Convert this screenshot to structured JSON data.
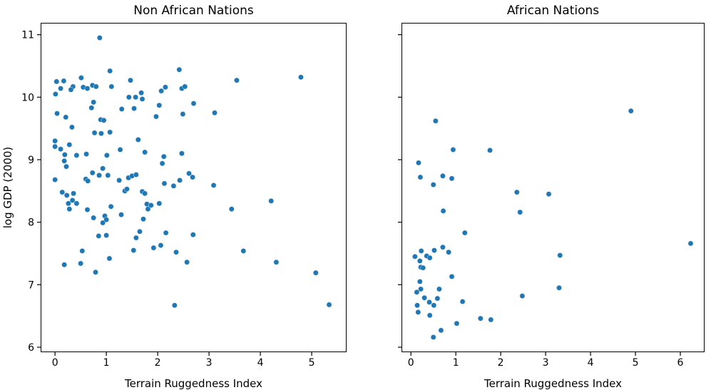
{
  "figure": {
    "background": "#ffffff",
    "marker_color": "#1f77b4",
    "marker_edge": "#d6e6f2",
    "spine_color": "#000000"
  },
  "chart_data": [
    {
      "type": "scatter",
      "title": "Non African Nations",
      "xlabel": "Terrain Ruggedness Index",
      "ylabel": "log GDP (2000)",
      "xlim": [
        -0.28,
        5.68
      ],
      "ylim": [
        5.92,
        11.19
      ],
      "xticks": [
        0,
        1,
        2,
        3,
        4,
        5
      ],
      "yticks": [
        6,
        7,
        8,
        9,
        10,
        11
      ],
      "show_ytick_labels": true,
      "grid": false,
      "legend": null,
      "points": [
        [
          0.87,
          10.95
        ],
        [
          1.07,
          10.42
        ],
        [
          2.42,
          10.44
        ],
        [
          3.54,
          10.27
        ],
        [
          4.79,
          10.32
        ],
        [
          0.51,
          10.31
        ],
        [
          0.03,
          10.25
        ],
        [
          0.17,
          10.26
        ],
        [
          1.47,
          10.27
        ],
        [
          0.35,
          10.17
        ],
        [
          0.11,
          10.14
        ],
        [
          0.31,
          10.12
        ],
        [
          0.55,
          10.16
        ],
        [
          0.63,
          10.14
        ],
        [
          0.73,
          10.19
        ],
        [
          0.8,
          10.17
        ],
        [
          1.1,
          10.17
        ],
        [
          2.07,
          10.1
        ],
        [
          2.15,
          10.16
        ],
        [
          2.47,
          10.14
        ],
        [
          2.53,
          10.17
        ],
        [
          0.01,
          10.05
        ],
        [
          1.68,
          10.07
        ],
        [
          1.44,
          10.0
        ],
        [
          1.57,
          10.0
        ],
        [
          1.7,
          9.97
        ],
        [
          2.7,
          9.9
        ],
        [
          0.75,
          9.92
        ],
        [
          0.71,
          9.83
        ],
        [
          1.3,
          9.81
        ],
        [
          1.54,
          9.82
        ],
        [
          2.03,
          9.87
        ],
        [
          0.04,
          9.74
        ],
        [
          2.49,
          9.73
        ],
        [
          3.11,
          9.75
        ],
        [
          0.21,
          9.68
        ],
        [
          1.97,
          9.69
        ],
        [
          0.89,
          9.64
        ],
        [
          0.95,
          9.63
        ],
        [
          0.33,
          9.52
        ],
        [
          0.77,
          9.43
        ],
        [
          0.9,
          9.42
        ],
        [
          1.07,
          9.44
        ],
        [
          0.0,
          9.3
        ],
        [
          1.62,
          9.32
        ],
        [
          0.0,
          9.21
        ],
        [
          0.11,
          9.17
        ],
        [
          0.28,
          9.24
        ],
        [
          0.42,
          9.07
        ],
        [
          0.61,
          9.09
        ],
        [
          1.01,
          9.07
        ],
        [
          1.75,
          9.12
        ],
        [
          2.47,
          9.1
        ],
        [
          1.27,
          9.16
        ],
        [
          2.12,
          9.05
        ],
        [
          0.19,
          9.08
        ],
        [
          0.18,
          8.98
        ],
        [
          2.09,
          8.94
        ],
        [
          0.22,
          8.89
        ],
        [
          0.93,
          8.86
        ],
        [
          0.73,
          8.79
        ],
        [
          0.86,
          8.75
        ],
        [
          1.03,
          8.75
        ],
        [
          1.43,
          8.71
        ],
        [
          1.5,
          8.74
        ],
        [
          1.58,
          8.76
        ],
        [
          0.0,
          8.68
        ],
        [
          0.6,
          8.69
        ],
        [
          0.64,
          8.66
        ],
        [
          1.25,
          8.67
        ],
        [
          2.13,
          8.62
        ],
        [
          2.43,
          8.67
        ],
        [
          2.61,
          8.78
        ],
        [
          2.68,
          8.72
        ],
        [
          2.31,
          8.58
        ],
        [
          1.36,
          8.5
        ],
        [
          1.4,
          8.53
        ],
        [
          0.14,
          8.48
        ],
        [
          0.23,
          8.43
        ],
        [
          0.36,
          8.46
        ],
        [
          1.7,
          8.49
        ],
        [
          1.75,
          8.46
        ],
        [
          3.09,
          8.59
        ],
        [
          0.34,
          8.35
        ],
        [
          0.42,
          8.3
        ],
        [
          0.26,
          8.3
        ],
        [
          0.28,
          8.21
        ],
        [
          0.63,
          8.2
        ],
        [
          1.09,
          8.25
        ],
        [
          1.79,
          8.29
        ],
        [
          1.87,
          8.27
        ],
        [
          1.81,
          8.21
        ],
        [
          2.03,
          8.3
        ],
        [
          4.21,
          8.34
        ],
        [
          3.44,
          8.21
        ],
        [
          1.29,
          8.12
        ],
        [
          0.75,
          8.07
        ],
        [
          0.97,
          8.1
        ],
        [
          1.0,
          8.04
        ],
        [
          0.93,
          7.99
        ],
        [
          1.72,
          8.05
        ],
        [
          1.65,
          7.85
        ],
        [
          0.85,
          7.78
        ],
        [
          1.0,
          7.79
        ],
        [
          2.16,
          7.83
        ],
        [
          2.69,
          7.8
        ],
        [
          1.58,
          7.75
        ],
        [
          1.92,
          7.59
        ],
        [
          2.06,
          7.63
        ],
        [
          1.53,
          7.55
        ],
        [
          0.53,
          7.54
        ],
        [
          2.36,
          7.52
        ],
        [
          3.67,
          7.54
        ],
        [
          1.06,
          7.42
        ],
        [
          0.5,
          7.34
        ],
        [
          2.57,
          7.36
        ],
        [
          0.18,
          7.32
        ],
        [
          0.79,
          7.2
        ],
        [
          4.31,
          7.36
        ],
        [
          5.08,
          7.19
        ],
        [
          2.33,
          6.67
        ],
        [
          5.34,
          6.68
        ]
      ]
    },
    {
      "type": "scatter",
      "title": "African Nations",
      "xlabel": "Terrain Ruggedness Index",
      "ylabel": "",
      "xlim": [
        -0.21,
        6.54
      ],
      "ylim": [
        5.92,
        11.19
      ],
      "xticks": [
        0,
        1,
        2,
        3,
        4,
        5,
        6
      ],
      "yticks": [
        6,
        7,
        8,
        9,
        10,
        11
      ],
      "show_ytick_labels": false,
      "grid": false,
      "legend": null,
      "points": [
        [
          0.55,
          9.62
        ],
        [
          4.9,
          9.78
        ],
        [
          0.94,
          9.16
        ],
        [
          1.76,
          9.15
        ],
        [
          0.17,
          8.95
        ],
        [
          0.21,
          8.72
        ],
        [
          0.71,
          8.74
        ],
        [
          0.91,
          8.7
        ],
        [
          0.5,
          8.6
        ],
        [
          2.36,
          8.48
        ],
        [
          3.07,
          8.45
        ],
        [
          0.72,
          8.18
        ],
        [
          2.43,
          8.16
        ],
        [
          1.2,
          7.83
        ],
        [
          6.23,
          7.66
        ],
        [
          0.23,
          7.54
        ],
        [
          0.52,
          7.55
        ],
        [
          0.71,
          7.6
        ],
        [
          0.84,
          7.52
        ],
        [
          0.09,
          7.45
        ],
        [
          0.35,
          7.46
        ],
        [
          0.42,
          7.43
        ],
        [
          3.32,
          7.47
        ],
        [
          0.2,
          7.38
        ],
        [
          0.22,
          7.28
        ],
        [
          0.27,
          7.27
        ],
        [
          0.91,
          7.13
        ],
        [
          0.2,
          7.05
        ],
        [
          0.13,
          6.88
        ],
        [
          0.22,
          6.93
        ],
        [
          0.63,
          6.93
        ],
        [
          3.3,
          6.95
        ],
        [
          2.48,
          6.82
        ],
        [
          0.3,
          6.79
        ],
        [
          0.59,
          6.78
        ],
        [
          1.15,
          6.73
        ],
        [
          0.41,
          6.72
        ],
        [
          0.51,
          6.67
        ],
        [
          0.14,
          6.67
        ],
        [
          0.16,
          6.56
        ],
        [
          0.42,
          6.51
        ],
        [
          1.02,
          6.38
        ],
        [
          1.55,
          6.46
        ],
        [
          1.78,
          6.44
        ],
        [
          0.67,
          6.27
        ],
        [
          0.5,
          6.16
        ]
      ]
    }
  ]
}
